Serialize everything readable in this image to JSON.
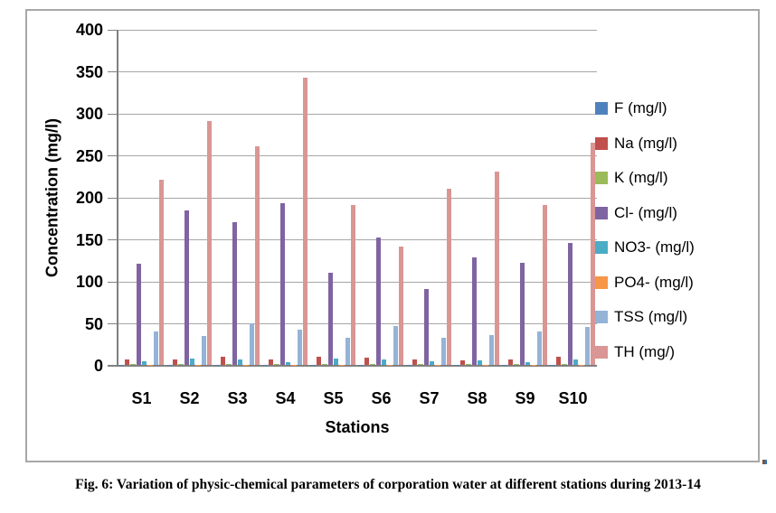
{
  "figure": {
    "caption": "Fig. 6: Variation of physic-chemical parameters of corporation water at different stations during 2013-14",
    "artifact_colors": [
      "#8B4A2F",
      "#2E75B6"
    ]
  },
  "chart_data": {
    "type": "bar",
    "title": "",
    "xlabel": "Stations",
    "ylabel": "Concentration (mg/l)",
    "ylim": [
      0,
      400
    ],
    "yticks": [
      0,
      50,
      100,
      150,
      200,
      250,
      300,
      350,
      400
    ],
    "grid": true,
    "legend_position": "right",
    "categories": [
      "S1",
      "S2",
      "S3",
      "S4",
      "S5",
      "S6",
      "S7",
      "S8",
      "S9",
      "S10"
    ],
    "series": [
      {
        "name": "F (mg/l)",
        "color": "#4F81BD",
        "values": [
          0.5,
          0.5,
          0.5,
          0.5,
          0.5,
          0.5,
          0.5,
          0.5,
          0.5,
          0.5
        ]
      },
      {
        "name": "Na (mg/l)",
        "color": "#C0504D",
        "values": [
          7,
          6,
          10,
          7,
          10,
          9,
          6,
          5,
          7,
          10
        ]
      },
      {
        "name": "K (mg/l)",
        "color": "#9BBB59",
        "values": [
          1,
          1,
          1,
          1,
          1,
          1,
          1,
          1,
          1,
          1
        ]
      },
      {
        "name": "Cl- (mg/l)",
        "color": "#8064A2",
        "values": [
          120,
          184,
          170,
          192,
          110,
          152,
          90,
          128,
          121,
          145
        ]
      },
      {
        "name": "NO3- (mg/l)",
        "color": "#4BACC6",
        "values": [
          4,
          8,
          7,
          3,
          8,
          6,
          4,
          5,
          3,
          7
        ]
      },
      {
        "name": "PO4- (mg/l)",
        "color": "#F79646",
        "values": [
          0.5,
          0.5,
          0.5,
          0.5,
          0.5,
          0.5,
          0.5,
          0.5,
          0.5,
          0.5
        ]
      },
      {
        "name": "TSS (mg/l)",
        "color": "#95B3D7",
        "values": [
          40,
          34,
          50,
          42,
          32,
          46,
          32,
          35,
          40,
          45
        ]
      },
      {
        "name": "TH (mg/)",
        "color": "#D99694",
        "values": [
          220,
          290,
          260,
          342,
          190,
          141,
          210,
          230,
          190,
          265
        ]
      }
    ]
  }
}
